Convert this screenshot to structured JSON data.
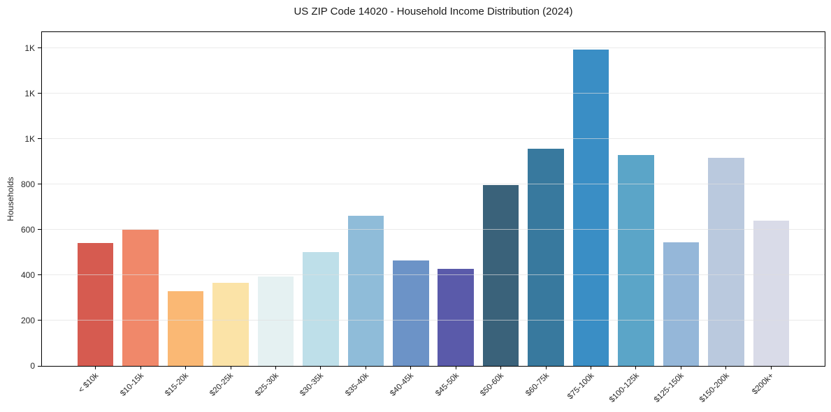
{
  "chart_data": {
    "type": "bar",
    "title": "US ZIP Code 14020 - Household Income Distribution (2024)",
    "xlabel": "",
    "ylabel": "Households",
    "categories": [
      "< $10k",
      "$10-15k",
      "$15-20k",
      "$20-25k",
      "$25-30k",
      "$30-35k",
      "$35-40k",
      "$40-45k",
      "$45-50k",
      "$50-60k",
      "$60-75k",
      "$75-100k",
      "$100-125k",
      "$125-150k",
      "$150-200k",
      "$200k+"
    ],
    "values": [
      540,
      600,
      330,
      365,
      395,
      502,
      662,
      463,
      427,
      798,
      958,
      1392,
      928,
      545,
      918,
      640
    ],
    "bar_colors": [
      "#d65b50",
      "#f0886a",
      "#fab874",
      "#fbe3a7",
      "#e5f1f2",
      "#bedfe9",
      "#8fbcd9",
      "#6c93c7",
      "#5a5aaa",
      "#3a627a",
      "#38799e",
      "#3a8ec5",
      "#5ba5c8",
      "#95b7d9",
      "#bac9de",
      "#d9dbe8"
    ],
    "ylim": [
      0,
      1470
    ],
    "yticks": [
      {
        "value": 0,
        "label": "0"
      },
      {
        "value": 200,
        "label": "200"
      },
      {
        "value": 400,
        "label": "400"
      },
      {
        "value": 600,
        "label": "600"
      },
      {
        "value": 800,
        "label": "800"
      },
      {
        "value": 1000,
        "label": "1K"
      },
      {
        "value": 1200,
        "label": "1K"
      },
      {
        "value": 1400,
        "label": "1K"
      }
    ],
    "legend": "none",
    "grid": "horizontal",
    "colors": {
      "background": "#ffffff",
      "gridline": "#e9e9e9",
      "spine": "#000000",
      "text": "#262626"
    }
  }
}
